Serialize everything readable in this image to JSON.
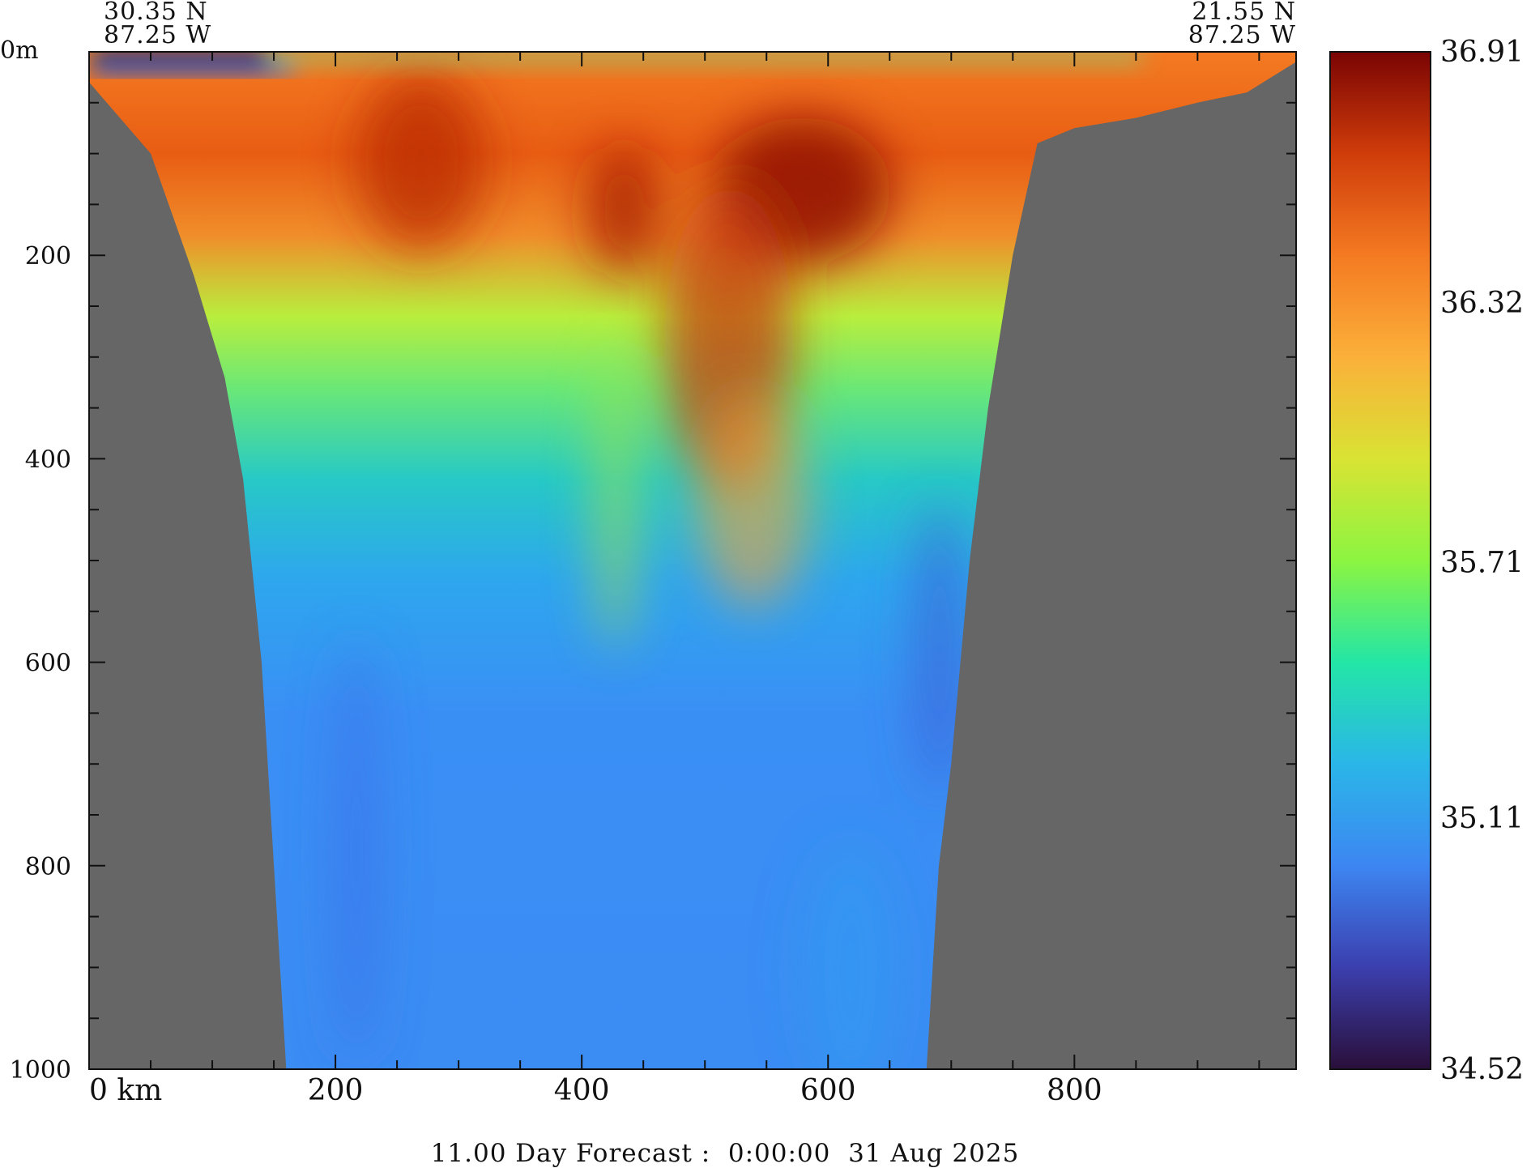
{
  "chart_data": {
    "type": "heatmap",
    "title": "",
    "subtitle": "11.00 Day Forecast :  0:00:00  31 Aug 2025",
    "section_start": {
      "lat": "30.35 N",
      "lon": "87.25 W"
    },
    "section_end": {
      "lat": "21.55 N",
      "lon": "87.25 W"
    },
    "x_axis": {
      "units": "km",
      "range": [
        0,
        980
      ],
      "tick_labels": [
        "0 km",
        "200",
        "400",
        "600",
        "800"
      ],
      "tick_values": [
        0,
        200,
        400,
        600,
        800
      ],
      "minor_tick_step": 50
    },
    "y_axis": {
      "units": "m",
      "range": [
        0,
        1000
      ],
      "inverted": true,
      "tick_labels": [
        "0m",
        "200",
        "400",
        "600",
        "800",
        "1000"
      ],
      "tick_values": [
        0,
        200,
        400,
        600,
        800,
        1000
      ],
      "minor_tick_step": 50
    },
    "colorbar": {
      "min": 34.52,
      "max": 36.91,
      "tick_labels": [
        "36.91",
        "36.32",
        "35.71",
        "35.11",
        "34.52"
      ],
      "tick_values": [
        36.91,
        36.32,
        35.71,
        35.11,
        34.52
      ],
      "colors": [
        "#2a0f3a",
        "#3b3fae",
        "#3d86f2",
        "#2ab6e8",
        "#23e6a6",
        "#8cf541",
        "#d9e333",
        "#fbb03a",
        "#f47a22",
        "#cf3c0a",
        "#7a0403"
      ]
    },
    "land_color": "#666666",
    "seafloor_profile": {
      "left_flank": [
        [
          0,
          30
        ],
        [
          50,
          100
        ],
        [
          85,
          220
        ],
        [
          110,
          320
        ],
        [
          125,
          420
        ],
        [
          140,
          600
        ],
        [
          150,
          800
        ],
        [
          160,
          1000
        ]
      ],
      "right_flank": [
        [
          680,
          1000
        ],
        [
          690,
          800
        ],
        [
          700,
          700
        ],
        [
          715,
          500
        ],
        [
          730,
          350
        ],
        [
          750,
          200
        ],
        [
          770,
          90
        ],
        [
          800,
          75
        ],
        [
          850,
          65
        ],
        [
          900,
          50
        ],
        [
          940,
          40
        ],
        [
          980,
          10
        ]
      ]
    },
    "salinity_profile": [
      {
        "depth": 0,
        "value": 36.3
      },
      {
        "depth": 100,
        "value": 36.5
      },
      {
        "depth": 200,
        "value": 36.35
      },
      {
        "depth": 300,
        "value": 35.8
      },
      {
        "depth": 400,
        "value": 35.4
      },
      {
        "depth": 500,
        "value": 35.1
      },
      {
        "depth": 600,
        "value": 34.98
      },
      {
        "depth": 800,
        "value": 34.95
      },
      {
        "depth": 1000,
        "value": 34.95
      }
    ]
  }
}
